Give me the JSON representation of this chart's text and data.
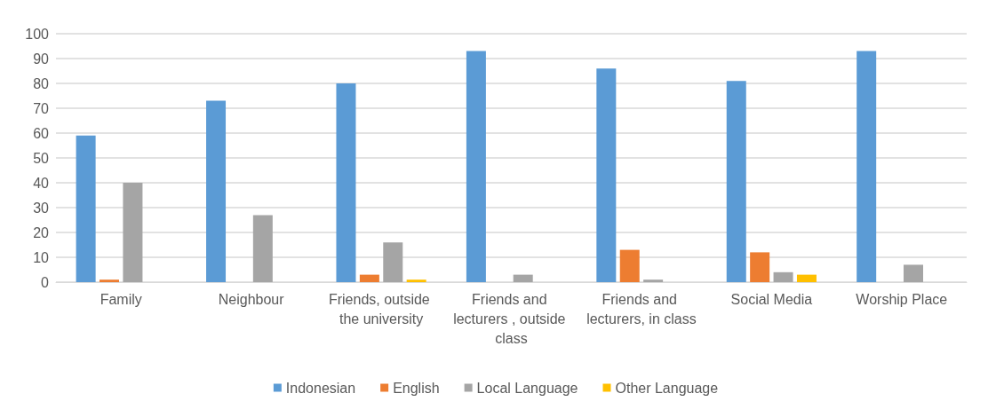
{
  "chart_data": {
    "type": "bar",
    "categories": [
      "Family",
      "Neighbour",
      "Friends, outside the university",
      "Friends and lecturers , outside class",
      "Friends and lecturers, in class",
      "Social Media",
      "Worship Place"
    ],
    "series": [
      {
        "name": "Indonesian",
        "color": "#5b9bd5",
        "values": [
          59,
          73,
          80,
          93,
          86,
          81,
          93
        ]
      },
      {
        "name": "English",
        "color": "#ed7d31",
        "values": [
          1,
          0,
          3,
          0,
          13,
          12,
          0
        ]
      },
      {
        "name": "Local Language",
        "color": "#a5a5a5",
        "values": [
          40,
          27,
          16,
          3,
          1,
          4,
          7
        ]
      },
      {
        "name": "Other Language",
        "color": "#ffc000",
        "values": [
          0,
          0,
          1,
          0,
          0,
          3,
          0
        ]
      }
    ],
    "ylim": [
      0,
      100
    ],
    "yticks": [
      0,
      10,
      20,
      30,
      40,
      50,
      60,
      70,
      80,
      90,
      100
    ],
    "grid": "y",
    "legend": "bottom"
  }
}
